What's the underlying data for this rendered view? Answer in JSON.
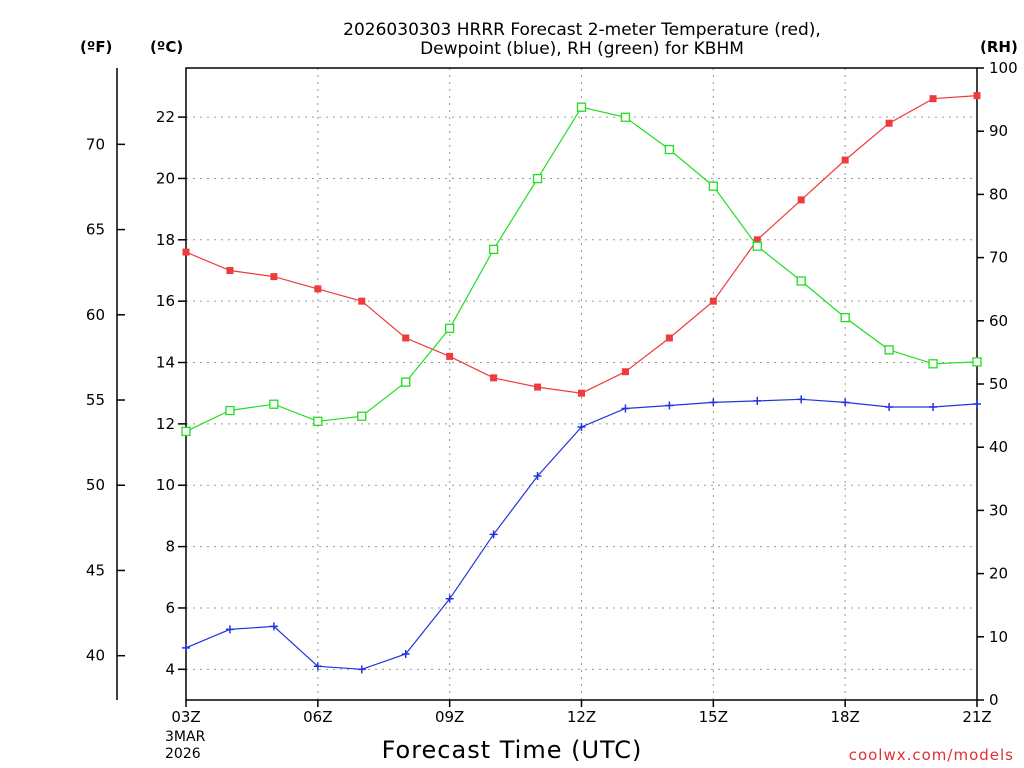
{
  "chart_data": {
    "type": "line",
    "title_lines": [
      "2026030303 HRRR Forecast 2-meter Temperature (red),",
      "Dewpoint (blue), RH (green) for KBHM"
    ],
    "xlabel": "Forecast Time (UTC)",
    "date_lines": [
      "3MAR",
      "2026"
    ],
    "credit": "coolwx.com/models",
    "units": {
      "fahrenheit": "(ºF)",
      "celsius": "(ºC)",
      "rh": "(RH)"
    },
    "x_hours": [
      3,
      4,
      5,
      6,
      7,
      8,
      9,
      10,
      11,
      12,
      13,
      14,
      15,
      16,
      17,
      18,
      19,
      20,
      21
    ],
    "x_tick_hours": [
      3,
      6,
      9,
      12,
      15,
      18,
      21
    ],
    "x_tick_labels": [
      "03Z",
      "06Z",
      "09Z",
      "12Z",
      "15Z",
      "18Z",
      "21Z"
    ],
    "xlim": [
      3,
      21
    ],
    "celsius_axis": {
      "ylim": [
        3,
        23.6
      ],
      "ticks": [
        4,
        6,
        8,
        10,
        12,
        14,
        16,
        18,
        20,
        22
      ],
      "tick_labels": [
        "4",
        "6",
        "8",
        "10",
        "12",
        "14",
        "16",
        "18",
        "20",
        "22"
      ]
    },
    "fahrenheit_axis": {
      "ticks": [
        40,
        45,
        50,
        55,
        60,
        65,
        70
      ],
      "tick_labels": [
        "40",
        "45",
        "50",
        "55",
        "60",
        "65",
        "70"
      ]
    },
    "rh_axis": {
      "ylim": [
        0,
        100
      ],
      "ticks": [
        0,
        10,
        20,
        30,
        40,
        50,
        60,
        70,
        80,
        90,
        100
      ],
      "tick_labels": [
        "0",
        "10",
        "20",
        "30",
        "40",
        "50",
        "60",
        "70",
        "80",
        "90",
        "100"
      ]
    },
    "grid": true,
    "series": [
      {
        "key": "temperature",
        "axis": "celsius",
        "marker": "filled-square",
        "color": "#ee3b3b",
        "values": [
          17.6,
          17.0,
          16.8,
          16.4,
          16.0,
          14.8,
          14.2,
          13.5,
          13.2,
          13.0,
          13.7,
          14.8,
          16.0,
          18.0,
          19.3,
          20.6,
          21.8,
          22.6,
          22.7
        ]
      },
      {
        "key": "dewpoint",
        "axis": "celsius",
        "marker": "plus",
        "color": "#2233dd",
        "values": [
          4.7,
          5.3,
          5.4,
          4.1,
          4.0,
          4.5,
          6.3,
          8.4,
          10.3,
          11.9,
          12.5,
          12.6,
          12.7,
          12.75,
          12.8,
          12.7,
          12.55,
          12.55,
          12.65
        ]
      },
      {
        "key": "rh",
        "axis": "rh",
        "marker": "open-square",
        "color": "#22dd22",
        "values": [
          42.5,
          45.8,
          46.8,
          44.1,
          44.9,
          50.3,
          58.8,
          71.3,
          82.5,
          93.8,
          92.2,
          87.1,
          81.3,
          71.8,
          66.3,
          60.5,
          55.4,
          53.2,
          53.5
        ]
      }
    ],
    "colors": {
      "credit": "#e03030",
      "grid": "#999999",
      "axis": "#000000"
    }
  }
}
